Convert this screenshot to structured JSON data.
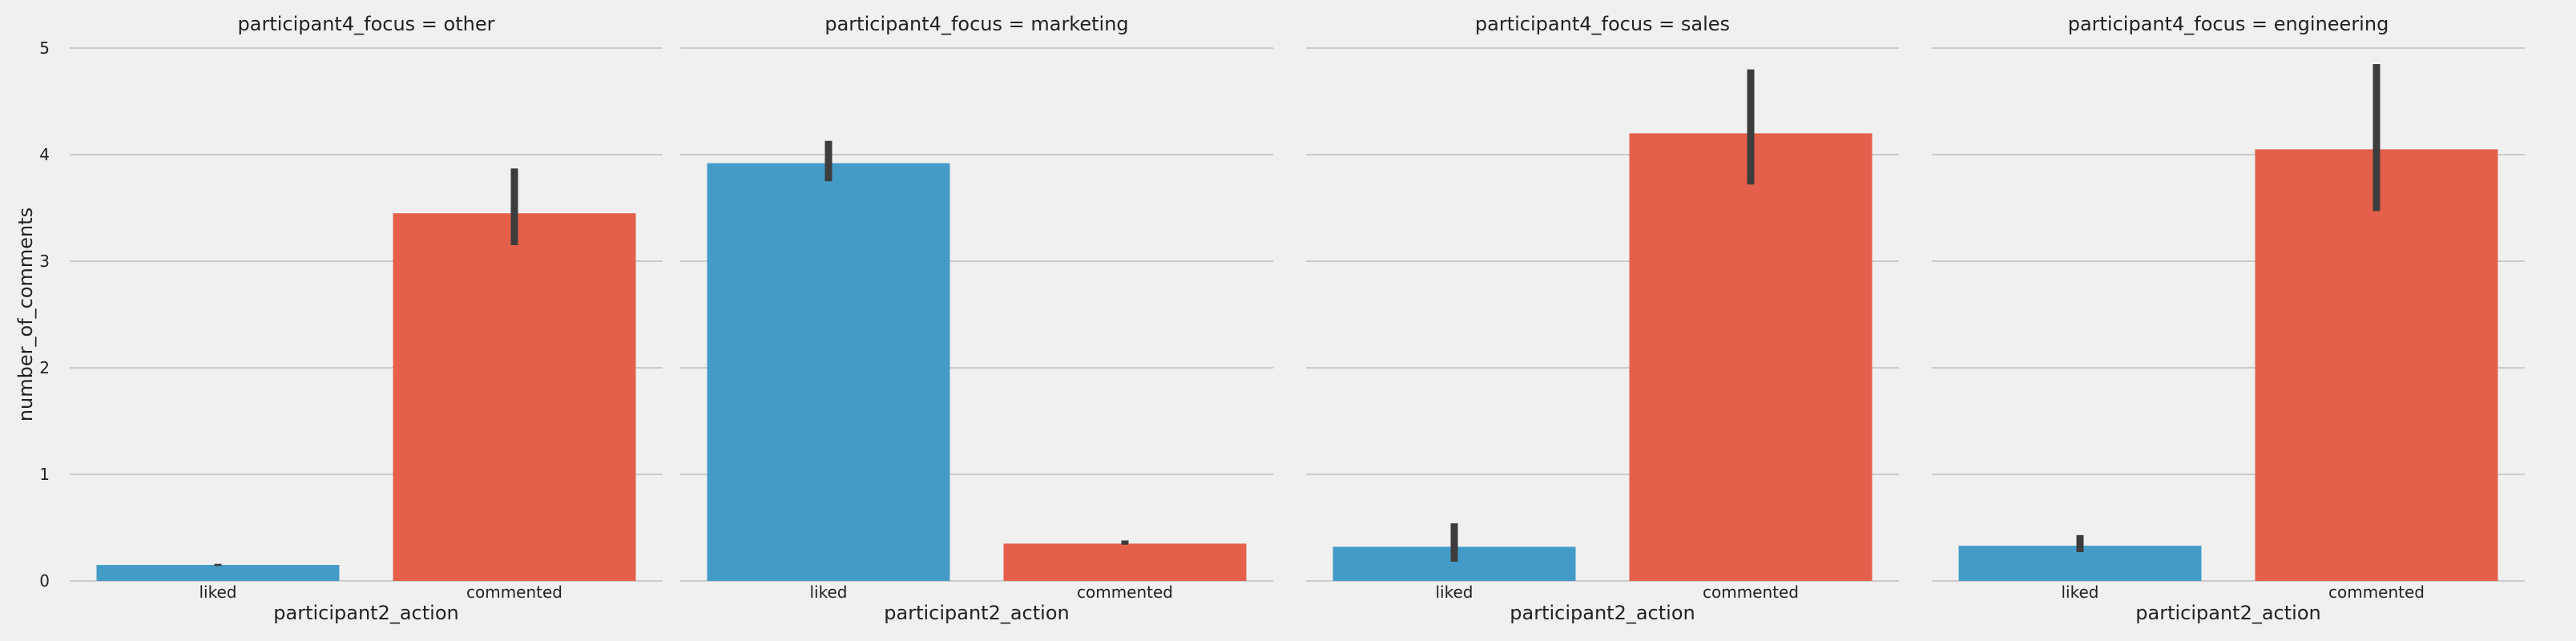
{
  "chart_data": {
    "type": "bar",
    "facet_variable": "participant4_focus",
    "xlabel": "participant2_action",
    "ylabel": "number_of_comments",
    "ylim": [
      0,
      5
    ],
    "yticks": [
      0,
      1,
      2,
      3,
      4,
      5
    ],
    "grid": true,
    "colors": {
      "liked": "#459bc8",
      "commented": "#e5604a",
      "errorbar": "#3d3d3d",
      "grid": "#cbcbcb",
      "background": "#f0f0f0"
    },
    "panels": [
      {
        "title": "participant4_focus = other",
        "categories": [
          "liked",
          "commented"
        ],
        "values": [
          0.15,
          3.45
        ],
        "ci_low": [
          0.14,
          3.15
        ],
        "ci_high": [
          0.16,
          3.87
        ]
      },
      {
        "title": "participant4_focus = marketing",
        "categories": [
          "liked",
          "commented"
        ],
        "values": [
          3.92,
          0.35
        ],
        "ci_low": [
          3.75,
          0.34
        ],
        "ci_high": [
          4.13,
          0.38
        ]
      },
      {
        "title": "participant4_focus = sales",
        "categories": [
          "liked",
          "commented"
        ],
        "values": [
          0.32,
          4.2
        ],
        "ci_low": [
          0.18,
          3.72
        ],
        "ci_high": [
          0.54,
          4.8
        ]
      },
      {
        "title": "participant4_focus = engineering",
        "categories": [
          "liked",
          "commented"
        ],
        "values": [
          0.33,
          4.05
        ],
        "ci_low": [
          0.27,
          3.47
        ],
        "ci_high": [
          0.43,
          4.85
        ]
      }
    ]
  }
}
